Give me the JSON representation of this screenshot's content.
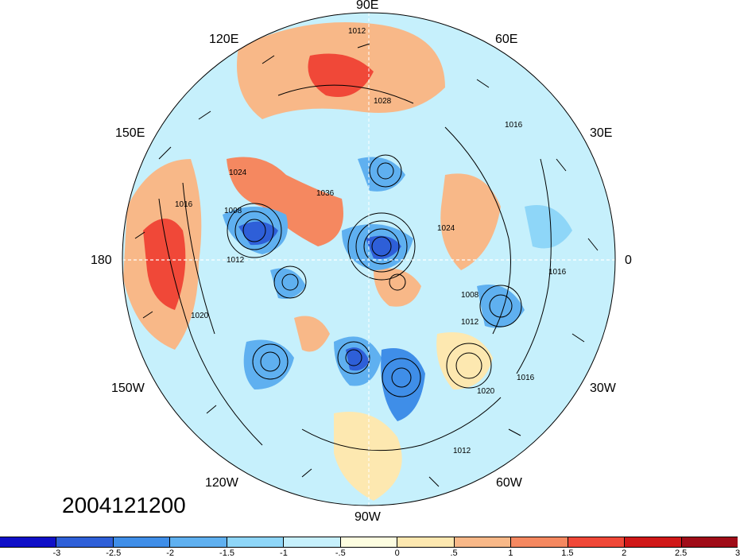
{
  "timestamp": "2004121200",
  "longitude_labels": {
    "lon_90e": "90E",
    "lon_120e": "120E",
    "lon_60e": "60E",
    "lon_150e": "150E",
    "lon_30e": "30E",
    "lon_180": "180",
    "lon_0": "0",
    "lon_150w": "150W",
    "lon_30w": "30W",
    "lon_120w": "120W",
    "lon_60w": "60W",
    "lon_90w": "90W"
  },
  "colorbar": {
    "colors": [
      "#1010c8",
      "#2e5fd8",
      "#3f8ee8",
      "#5fb0f0",
      "#8ed6f8",
      "#c6f0fc",
      "#fdfde0",
      "#fde8b0",
      "#f8b888",
      "#f58860",
      "#f04838",
      "#d01818",
      "#a00c18"
    ],
    "labels": [
      "-3",
      "-2.5",
      "-2",
      "-1.5",
      "-1",
      "-.5",
      "0",
      ".5",
      "1",
      "1.5",
      "2",
      "2.5",
      "3"
    ]
  },
  "isobar_labels": [
    "1012",
    "1024",
    "1036",
    "1016",
    "1008",
    "1020",
    "1012",
    "1016",
    "1024",
    "1008",
    "1016",
    "1028",
    "1020",
    "1012",
    "1016",
    "1012"
  ],
  "anomaly_colors": {
    "strong_neg": "#2e5fd8",
    "neg": "#5fb0f0",
    "weak_neg": "#c6f0fc",
    "weak_pos": "#fde8b0",
    "pos": "#f8b888",
    "strong_pos": "#f04838",
    "max_pos": "#d01818"
  }
}
